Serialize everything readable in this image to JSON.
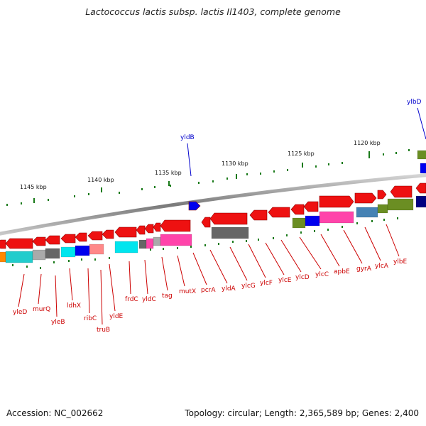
{
  "title": "Lactococcus lactis subsp. lactis Il1403, complete genome",
  "accession": "Accession: NC_002662",
  "summary": "Topology: circular; Length: 2,365,589 bp; Genes: 2,400",
  "colors": {
    "forward_gene": "#ee1111",
    "reverse_gene": "#ee1111",
    "label_red": "#cc0000",
    "label_blue": "#0000cc",
    "backbone": "#888888",
    "ticks": "#1a7a1a",
    "cog_palette": [
      "#ff8800",
      "#22cccc",
      "#aaaaaa",
      "#666666",
      "#00e5ee",
      "#0000ee",
      "#ff8888",
      "#ff44aa",
      "#6b8e23",
      "#4682b4",
      "#000080",
      "#d14fbf"
    ]
  },
  "scale_labels": [
    "1145 kbp",
    "1140 kbp",
    "1135 kbp",
    "1130 kbp",
    "1125 kbp",
    "1120 kbp"
  ],
  "genes_top": [
    "yldB",
    "ylbD"
  ],
  "genes_bottom": [
    "yleD",
    "murQ",
    "yleB",
    "ldhX",
    "ribC",
    "truB",
    "yldE",
    "frdC",
    "yldC",
    "tag",
    "mutX",
    "pcrA",
    "yldA",
    "ylcG",
    "ylcF",
    "ylcE",
    "ylcD",
    "ylcC",
    "apbE",
    "gyrA",
    "ylcA",
    "ylbE"
  ]
}
